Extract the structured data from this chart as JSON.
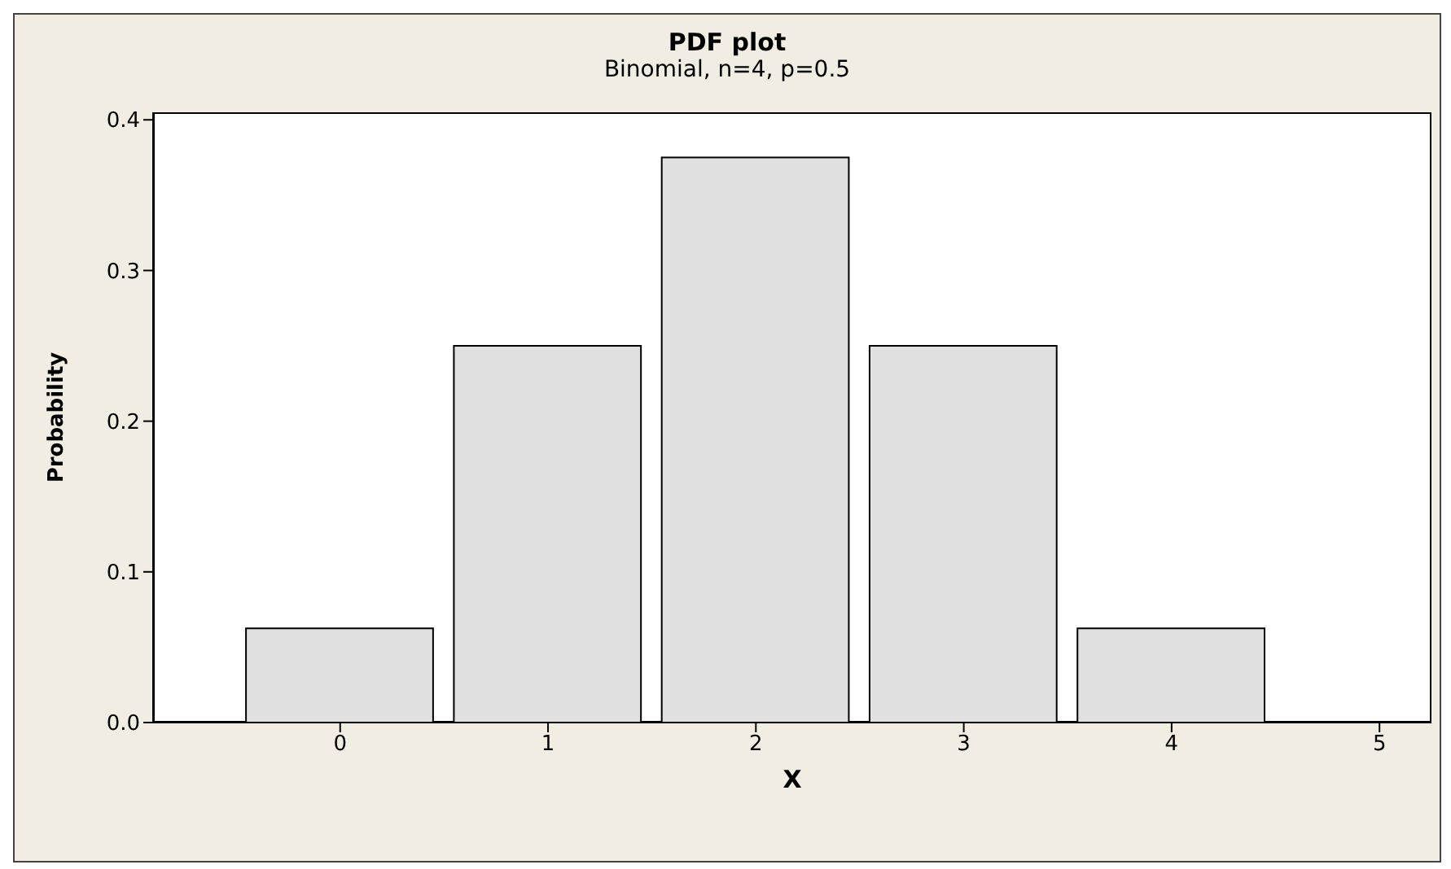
{
  "chart_data": {
    "type": "bar",
    "title": "PDF plot",
    "subtitle": "Binomial, n=4, p=0.5",
    "xlabel": "X",
    "ylabel": "Probability",
    "x": [
      0,
      1,
      2,
      3,
      4
    ],
    "values": [
      0.0625,
      0.25,
      0.375,
      0.25,
      0.0625
    ],
    "color": "#e0e0e0",
    "xlim": [
      -0.9,
      5.25
    ],
    "xticks": [
      0,
      1,
      2,
      3,
      4,
      5
    ],
    "ylim": [
      0,
      0.405
    ],
    "yticks": [
      {
        "value": 0,
        "label": "0.0"
      },
      {
        "value": 0.1,
        "label": "0.1"
      },
      {
        "value": 0.2,
        "label": "0.2"
      },
      {
        "value": 0.3,
        "label": "0.3"
      },
      {
        "value": 0.4,
        "label": "0.4"
      }
    ],
    "grid": false,
    "legend": false
  }
}
